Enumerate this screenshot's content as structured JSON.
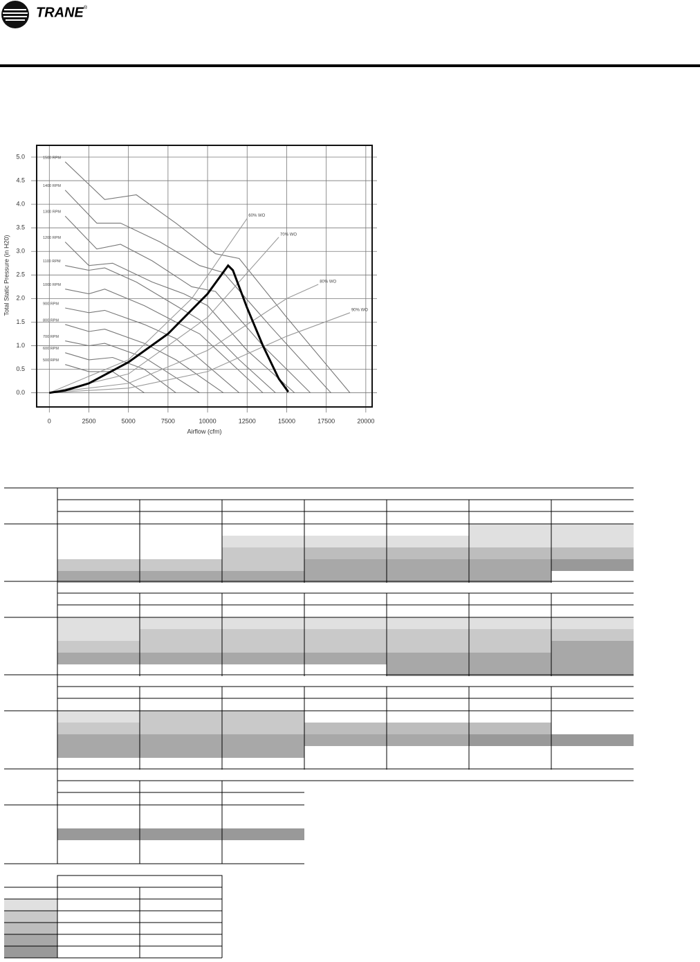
{
  "header": {
    "brand": "TRANE",
    "mark": "®"
  },
  "chart_data": {
    "type": "line",
    "xlabel": "Airflow (cfm)",
    "ylabel": "Total Static Pressure (in H20)",
    "xlim": [
      -800,
      20400
    ],
    "ylim": [
      -0.3,
      5.25
    ],
    "xticks": [
      0,
      2500,
      5000,
      7500,
      10000,
      12500,
      15000,
      17500,
      20000
    ],
    "yticks": [
      {
        "value": 0,
        "label": "0.0"
      },
      0.5,
      {
        "value": 1,
        "label": "1.0"
      },
      1.5,
      {
        "value": 2,
        "label": "2.0"
      },
      2.5,
      {
        "value": 3,
        "label": "3.0"
      },
      3.5,
      {
        "value": 4,
        "label": "4.0"
      },
      4.5,
      {
        "value": 5,
        "label": "5.0"
      }
    ],
    "grid": true,
    "series": [
      {
        "name": "1500 RPM",
        "color": "#777777",
        "x": [
          1000,
          3500,
          5500,
          8000,
          10500,
          12000,
          15000,
          19000
        ],
        "values": [
          4.9,
          4.1,
          4.2,
          3.6,
          2.95,
          2.85,
          1.6,
          0
        ]
      },
      {
        "name": "1400 RPM",
        "color": "#777777",
        "x": [
          1000,
          3000,
          4500,
          7000,
          9500,
          11000,
          14000,
          17800
        ],
        "values": [
          4.3,
          3.6,
          3.6,
          3.2,
          2.7,
          2.55,
          1.4,
          0
        ]
      },
      {
        "name": "1300 RPM",
        "color": "#777777",
        "x": [
          1000,
          3000,
          4500,
          6500,
          9000,
          10500,
          13500,
          16500
        ],
        "values": [
          3.75,
          3.05,
          3.15,
          2.8,
          2.25,
          2.15,
          1.0,
          0
        ]
      },
      {
        "name": "1200 RPM",
        "color": "#777777",
        "x": [
          1000,
          2500,
          4000,
          6500,
          8500,
          10000,
          12500,
          15500
        ],
        "values": [
          3.2,
          2.7,
          2.75,
          2.35,
          2.1,
          1.85,
          0.9,
          0
        ]
      },
      {
        "name": "1100 RPM",
        "color": "#777777",
        "x": [
          1000,
          2500,
          3500,
          5500,
          8000,
          9500,
          12000,
          14300
        ],
        "values": [
          2.7,
          2.6,
          2.65,
          2.35,
          1.85,
          1.55,
          0.7,
          0
        ]
      },
      {
        "name": "1000 RPM",
        "color": "#777777",
        "x": [
          1000,
          2500,
          3500,
          6000,
          8000,
          9500,
          13500
        ],
        "values": [
          2.2,
          2.1,
          2.2,
          1.85,
          1.5,
          1.25,
          0
        ]
      },
      {
        "name": "900 RPM",
        "color": "#777777",
        "x": [
          1000,
          2500,
          3500,
          6000,
          8000,
          12000
        ],
        "values": [
          1.8,
          1.7,
          1.75,
          1.45,
          1.15,
          0
        ]
      },
      {
        "name": "800 RPM",
        "color": "#777777",
        "x": [
          1000,
          2500,
          3500,
          6000,
          8000,
          11000
        ],
        "values": [
          1.45,
          1.3,
          1.35,
          1.05,
          0.7,
          0
        ]
      },
      {
        "name": "700 RPM",
        "color": "#777777",
        "x": [
          1000,
          2500,
          3500,
          6000,
          9500
        ],
        "values": [
          1.1,
          1.0,
          1.05,
          0.75,
          0
        ]
      },
      {
        "name": "600 RPM",
        "color": "#777777",
        "x": [
          1000,
          2500,
          4000,
          6000,
          8000
        ],
        "values": [
          0.85,
          0.7,
          0.75,
          0.5,
          0
        ]
      },
      {
        "name": "500 RPM",
        "color": "#777777",
        "x": [
          1000,
          2500,
          4000,
          6000
        ],
        "values": [
          0.6,
          0.45,
          0.45,
          0
        ]
      },
      {
        "name": "60% WO",
        "color": "#999999",
        "x": [
          0,
          5000,
          9000,
          12500
        ],
        "values": [
          0,
          0.7,
          2.0,
          3.7
        ]
      },
      {
        "name": "70% WO",
        "color": "#999999",
        "x": [
          0,
          5000,
          10000,
          14500
        ],
        "values": [
          0,
          0.4,
          1.6,
          3.3
        ]
      },
      {
        "name": "80% WO",
        "color": "#999999",
        "x": [
          0,
          5000,
          10000,
          15000,
          17000
        ],
        "values": [
          0,
          0.2,
          0.9,
          2.0,
          2.3
        ]
      },
      {
        "name": "90% WO",
        "color": "#999999",
        "x": [
          0,
          5000,
          10000,
          15000,
          19000
        ],
        "values": [
          0,
          0.1,
          0.45,
          1.2,
          1.7
        ]
      },
      {
        "color": "#000000",
        "x": [
          0,
          1000,
          2500,
          5000,
          7500,
          10000,
          11300,
          11600,
          12500,
          13500,
          14500,
          15100
        ],
        "values": [
          0,
          0.05,
          0.2,
          0.65,
          1.25,
          2.1,
          2.7,
          2.6,
          1.8,
          1.0,
          0.3,
          0.02
        ]
      }
    ]
  }
}
